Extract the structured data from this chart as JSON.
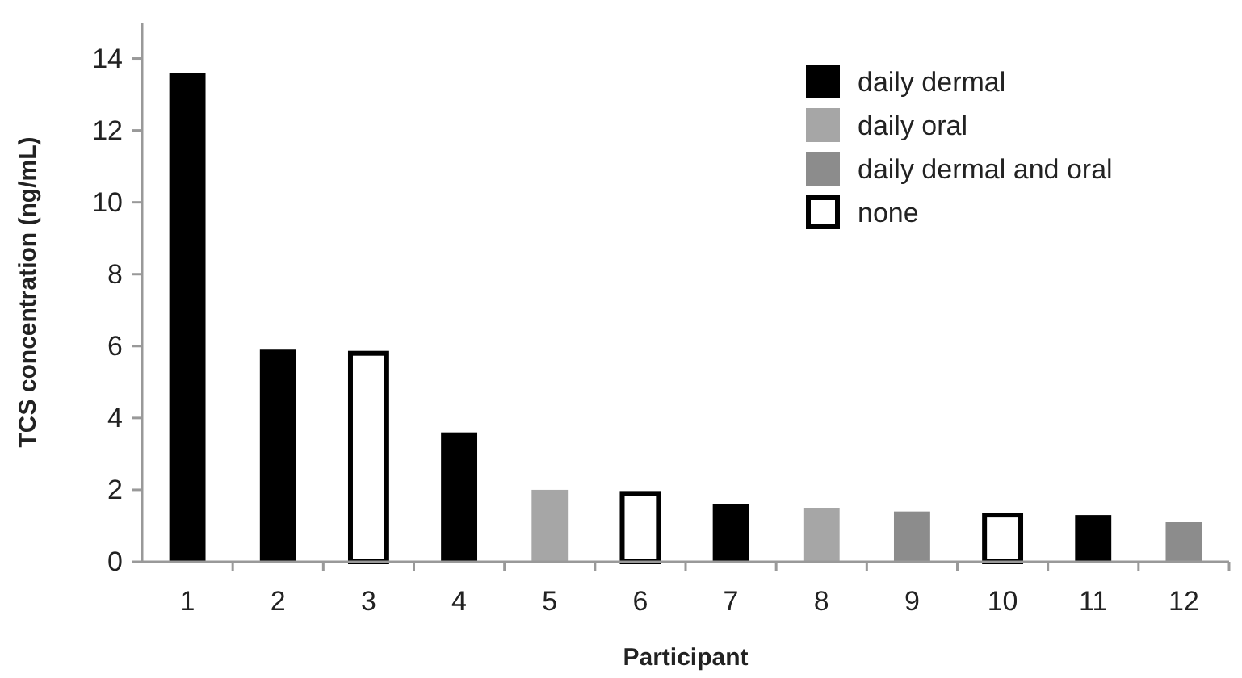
{
  "chart_data": {
    "type": "bar",
    "xlabel": "Participant",
    "ylabel": "TCS concentration (ng/mL)",
    "categories": [
      "1",
      "2",
      "3",
      "4",
      "5",
      "6",
      "7",
      "8",
      "9",
      "10",
      "11",
      "12"
    ],
    "series": [
      {
        "name": "daily dermal",
        "color": "#000000",
        "values": [
          13.6,
          5.9,
          null,
          3.6,
          null,
          null,
          1.6,
          null,
          null,
          null,
          1.3,
          null
        ]
      },
      {
        "name": "daily oral",
        "color": "#a6a6a6",
        "values": [
          null,
          null,
          null,
          null,
          2.0,
          null,
          null,
          1.5,
          null,
          null,
          null,
          null
        ]
      },
      {
        "name": "daily dermal and oral",
        "color": "#8c8c8c",
        "values": [
          null,
          null,
          null,
          null,
          null,
          null,
          null,
          null,
          1.4,
          null,
          null,
          1.1
        ]
      },
      {
        "name": "none",
        "color": "#ffffff",
        "values": [
          null,
          null,
          5.8,
          null,
          null,
          1.9,
          null,
          null,
          null,
          1.3,
          null,
          null
        ]
      }
    ],
    "ylim": [
      0,
      15
    ],
    "yticks": [
      0,
      2,
      4,
      6,
      8,
      10,
      12,
      14
    ],
    "grid": false,
    "legend": "top right"
  }
}
